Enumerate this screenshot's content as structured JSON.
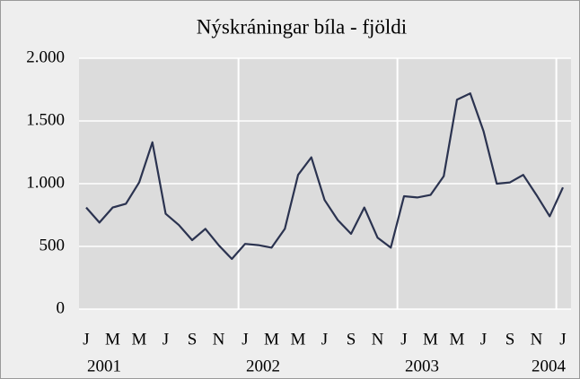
{
  "chart_data": {
    "type": "line",
    "title": "Nýskráningar bíla - fjöldi",
    "categories": [
      "J",
      null,
      "M",
      null,
      "M",
      null,
      "J",
      null,
      "S",
      null,
      "N",
      null,
      "J",
      null,
      "M",
      null,
      "M",
      null,
      "J",
      null,
      "S",
      null,
      "N",
      null,
      "J",
      null,
      "M",
      null,
      "M",
      null,
      "J",
      null,
      "S",
      null,
      "N",
      null,
      "J"
    ],
    "year_labels": [
      "2001",
      "2002",
      "2003",
      "2004"
    ],
    "series": [
      {
        "name": "Nýskráningar",
        "color": "#2b3350",
        "values": [
          810,
          690,
          810,
          840,
          1010,
          1330,
          760,
          670,
          550,
          640,
          510,
          400,
          520,
          510,
          490,
          640,
          1070,
          1210,
          870,
          710,
          600,
          810,
          570,
          490,
          900,
          890,
          910,
          1060,
          1670,
          1720,
          1420,
          1000,
          1010,
          1070,
          910,
          740,
          970
        ]
      }
    ],
    "ylim": [
      0,
      2000
    ],
    "yticks": [
      0,
      500,
      {
        "value": 1000,
        "label": "1.000"
      },
      {
        "value": 1500,
        "label": "1.500"
      },
      {
        "value": 2000,
        "label": "2.000"
      }
    ],
    "grid": true
  }
}
